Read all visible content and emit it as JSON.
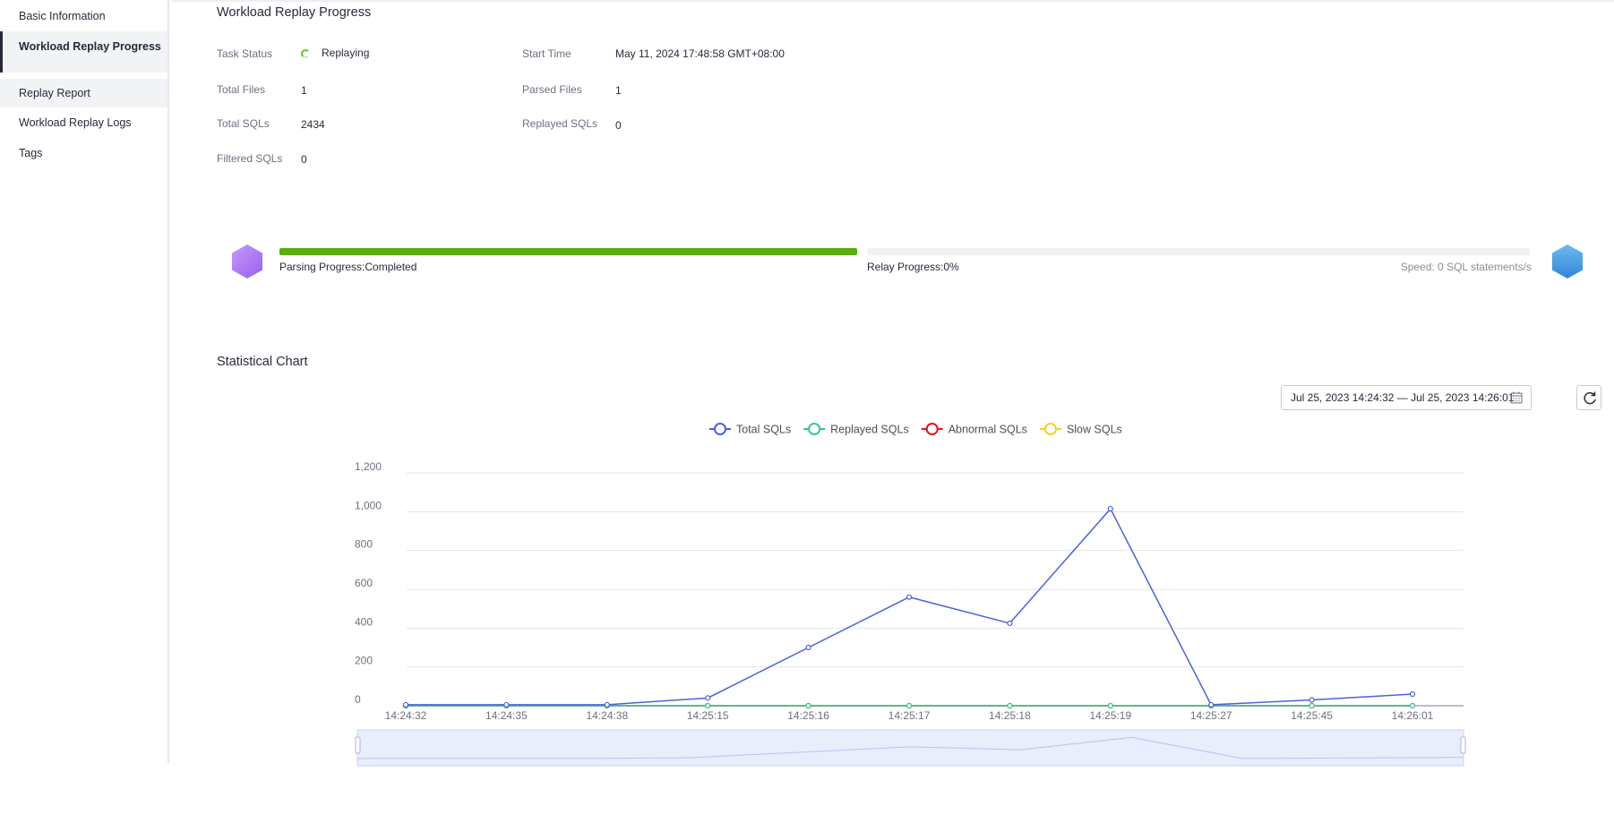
{
  "sidebar": {
    "items": [
      {
        "label": "Basic Information"
      },
      {
        "label": "Workload Replay Progress"
      },
      {
        "label": "Replay Report"
      },
      {
        "label": "Workload Replay Logs"
      },
      {
        "label": "Tags"
      }
    ]
  },
  "progress_section": {
    "title": "Workload Replay Progress",
    "fields": {
      "task_status_label": "Task Status",
      "task_status_value": "Replaying",
      "start_time_label": "Start Time",
      "start_time_value": "May 11, 2024 17:48:58 GMT+08:00",
      "total_files_label": "Total Files",
      "total_files_value": "1",
      "parsed_files_label": "Parsed Files",
      "parsed_files_value": "1",
      "total_sqls_label": "Total SQLs",
      "total_sqls_value": "2434",
      "replayed_sqls_label": "Replayed SQLs",
      "replayed_sqls_value": "0",
      "filtered_sqls_label": "Filtered SQLs",
      "filtered_sqls_value": "0"
    },
    "parsing_progress_text": "Parsing Progress:Completed",
    "parsing_progress_fraction": 1.0,
    "relay_progress_text": "Relay Progress:0%",
    "relay_progress_fraction": 0.0,
    "speed_text": "Speed: 0 SQL statements/s",
    "colors": {
      "progress_fill": "#5aad0f",
      "parse_hex": "#a66ff0",
      "relay_hex": "#3e97e3"
    }
  },
  "statistical_chart": {
    "title": "Statistical Chart",
    "date_range": "Jul 25, 2023 14:24:32 — Jul 25, 2023 14:26:01",
    "date_icon": "calendar-icon",
    "refresh_icon": "refresh-icon"
  },
  "chart_data": {
    "type": "line",
    "x": [
      "14:24:32",
      "14:24:35",
      "14:24:38",
      "14:25:15",
      "14:25:16",
      "14:25:17",
      "14:25:18",
      "14:25:19",
      "14:25:27",
      "14:25:45",
      "14:26:01"
    ],
    "ylim": [
      0,
      1200
    ],
    "yticks": [
      "0",
      "200",
      "400",
      "600",
      "800",
      "1,000",
      "1,200"
    ],
    "grid": true,
    "legend_position": "top-center",
    "series": [
      {
        "name": "Total SQLs",
        "color": "#4c62d6",
        "values": [
          5,
          5,
          5,
          40,
          300,
          560,
          425,
          1015,
          5,
          30,
          60
        ]
      },
      {
        "name": "Replayed SQLs",
        "color": "#3bc4a0",
        "values": [
          0,
          0,
          0,
          0,
          0,
          0,
          0,
          0,
          0,
          0,
          0
        ]
      },
      {
        "name": "Abnormal SQLs",
        "color": "#e6121a",
        "values": [
          0,
          0,
          0,
          0,
          0,
          0,
          0,
          0,
          0,
          0,
          0
        ]
      },
      {
        "name": "Slow SQLs",
        "color": "#f2d02c",
        "values": [
          0,
          0,
          0,
          0,
          0,
          0,
          0,
          0,
          0,
          0,
          0
        ]
      }
    ]
  }
}
